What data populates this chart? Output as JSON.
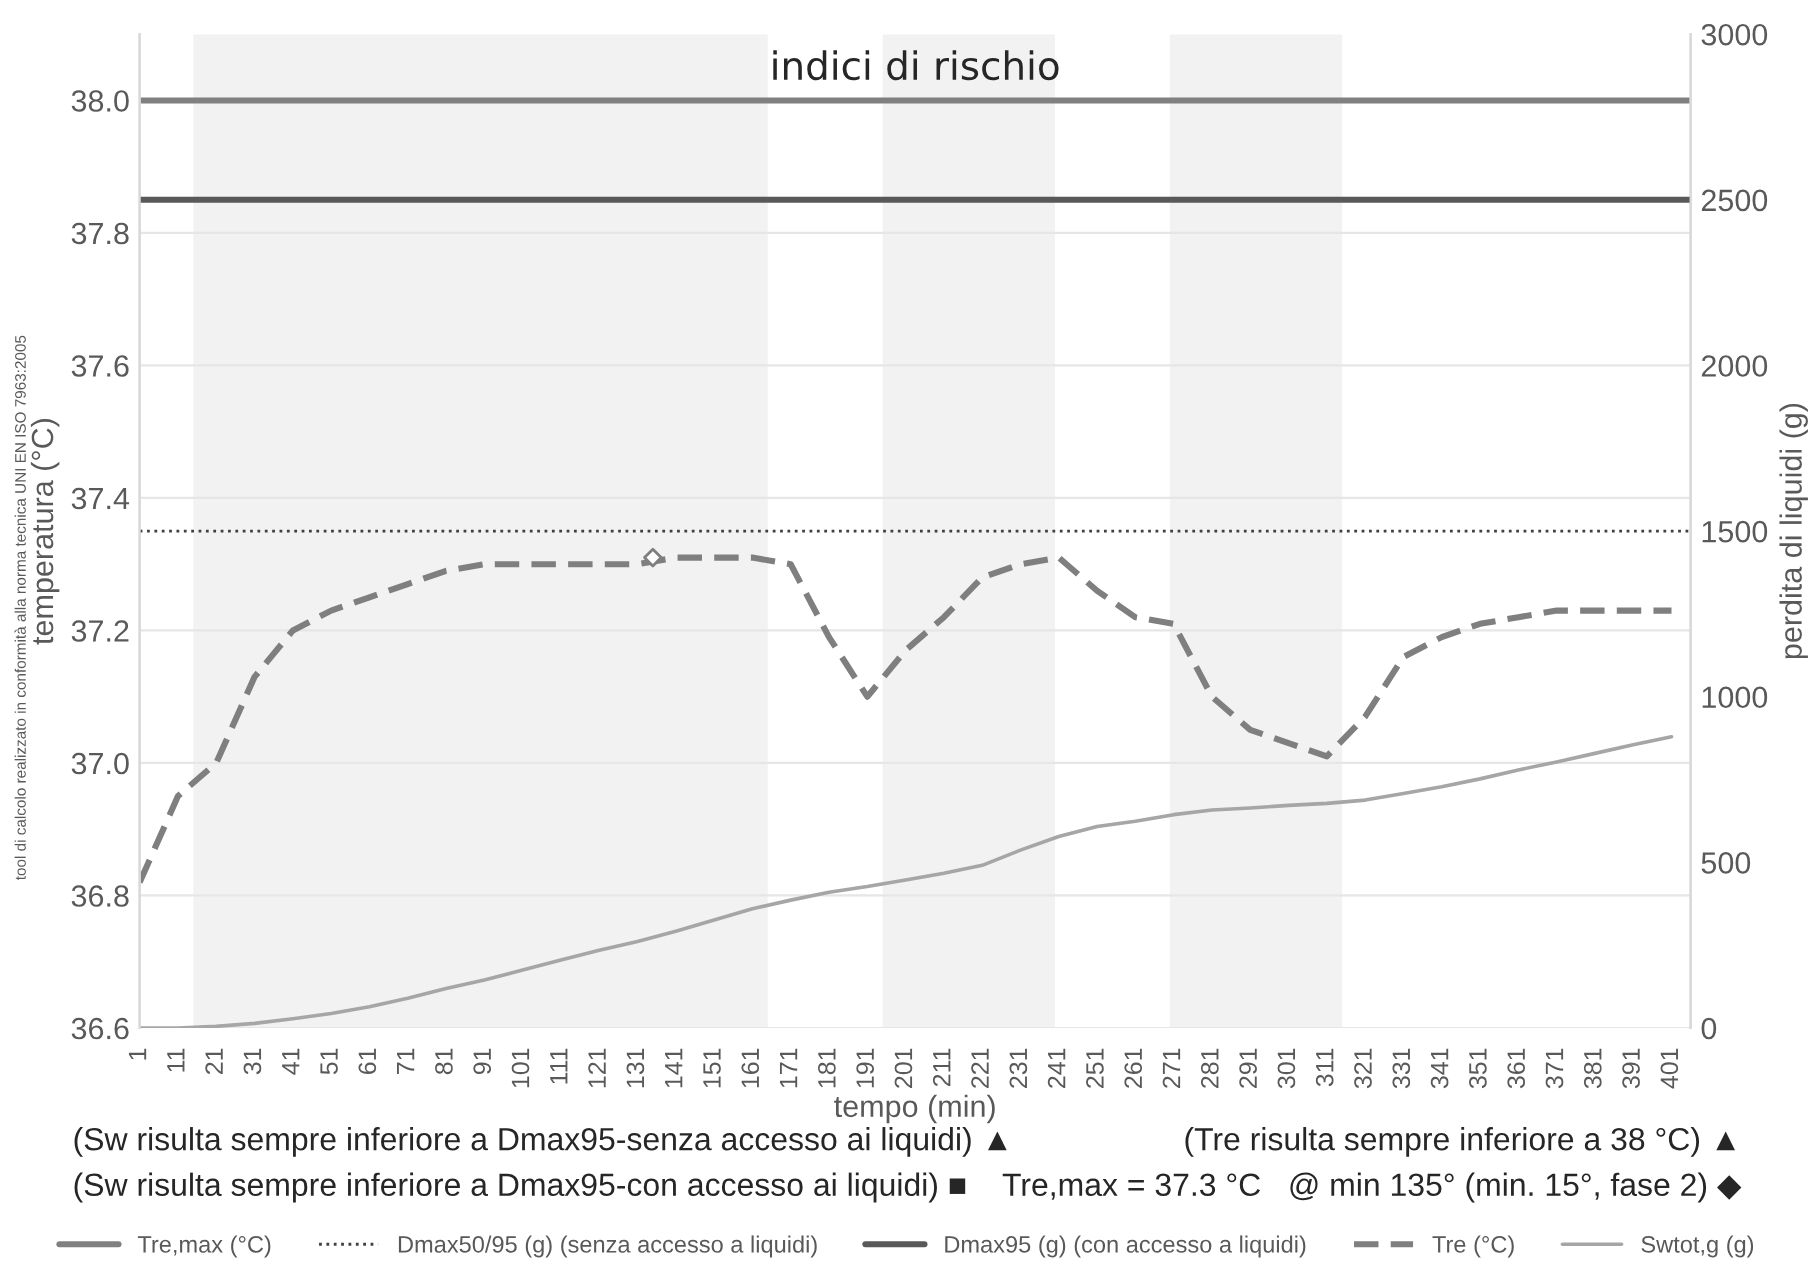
{
  "chart_data": {
    "type": "line",
    "title": "indici di rischio",
    "xlabel": "tempo (min)",
    "ylabel": "temperatura (°C)",
    "y2label": "perdita di liquidi (g)",
    "x": [
      1,
      11,
      21,
      31,
      41,
      51,
      61,
      71,
      81,
      91,
      101,
      111,
      121,
      131,
      141,
      151,
      161,
      171,
      181,
      191,
      201,
      211,
      221,
      231,
      241,
      251,
      261,
      271,
      281,
      291,
      301,
      311,
      321,
      331,
      341,
      351,
      361,
      371,
      381,
      391,
      401
    ],
    "xlim": [
      1,
      406
    ],
    "xticks": [
      1,
      11,
      21,
      31,
      41,
      51,
      61,
      71,
      81,
      91,
      101,
      111,
      121,
      131,
      141,
      151,
      161,
      171,
      181,
      191,
      201,
      211,
      221,
      231,
      241,
      251,
      261,
      271,
      281,
      291,
      301,
      311,
      321,
      331,
      341,
      351,
      361,
      371,
      381,
      391,
      401
    ],
    "ylim": [
      36.6,
      38.1
    ],
    "yticks": [
      {
        "value": 36.6,
        "label": "36.6"
      },
      {
        "value": 36.8,
        "label": "36.8"
      },
      {
        "value": 37.0,
        "label": "37.0"
      },
      {
        "value": 37.2,
        "label": "37.2"
      },
      {
        "value": 37.4,
        "label": "37.4"
      },
      {
        "value": 37.6,
        "label": "37.6"
      },
      {
        "value": 37.8,
        "label": "37.8"
      },
      {
        "value": 38.0,
        "label": "38.0"
      }
    ],
    "y2lim": [
      0,
      3000
    ],
    "y2ticks": [
      0,
      500,
      1000,
      1500,
      2000,
      2500,
      3000
    ],
    "grid": "y",
    "legend": "bottom",
    "ref_lines": [
      {
        "axis": "y",
        "value": 38.0,
        "label": "Tre,max (°C)",
        "color": "#808080",
        "line_style": "solid"
      },
      {
        "axis": "y2",
        "value": 1500,
        "label": "Dmax50/95 (g) (senza accesso a liquidi)",
        "color": "#404040",
        "line_style": "dotted"
      },
      {
        "axis": "y2",
        "value": 2500,
        "label": "Dmax95 (g) (con accesso a liquidi)",
        "color": "#595959",
        "line_style": "solid"
      }
    ],
    "bands": [
      {
        "axis": "x",
        "from": 15,
        "to": 165,
        "color": "#f2f2f2"
      },
      {
        "axis": "x",
        "from": 195,
        "to": 240,
        "color": "#f2f2f2"
      },
      {
        "axis": "x",
        "from": 270,
        "to": 315,
        "color": "#f2f2f2"
      }
    ],
    "series": [
      {
        "name": "Tre (°C)",
        "color": "#7f7f7f",
        "line_style": "dashed",
        "axis": "y",
        "values": [
          36.82,
          36.95,
          37.0,
          37.13,
          37.2,
          37.23,
          37.25,
          37.27,
          37.29,
          37.3,
          37.3,
          37.3,
          37.3,
          37.3,
          37.31,
          37.31,
          37.31,
          37.3,
          37.19,
          37.1,
          37.17,
          37.22,
          37.28,
          37.3,
          37.31,
          37.26,
          37.22,
          37.21,
          37.1,
          37.05,
          37.03,
          37.01,
          37.07,
          37.16,
          37.19,
          37.21,
          37.22,
          37.23,
          37.23,
          37.23,
          37.23
        ]
      },
      {
        "name": "Swtot,g (g)",
        "color": "#a6a6a6",
        "line_style": "solid",
        "axis": "y2",
        "values": [
          0,
          0,
          5,
          14,
          28,
          44,
          64,
          90,
          119,
          145,
          175,
          205,
          235,
          261,
          292,
          326,
          360,
          386,
          410,
          427,
          447,
          467,
          491,
          537,
          578,
          608,
          624,
          644,
          658,
          664,
          672,
          678,
          688,
          708,
          728,
          752,
          779,
          803,
          829,
          855,
          879
        ]
      },
      {
        "type": "scatter",
        "marker": "diamond",
        "color": "#7f7f7f",
        "axis": "y",
        "x": [
          135
        ],
        "values": [
          37.31
        ]
      }
    ],
    "annotations": [
      "(Sw risulta sempre inferiore a Dmax95-senza accesso ai liquidi) ▲",
      "(Tre risulta sempre inferiore a 38 °C) ▲",
      "(Sw risulta sempre inferiore a Dmax95-con accesso ai liquidi) ■",
      "Tre,max = 37.3 °C   @ min 135° (min. 15°, fase 2) ◆",
      "tool di calcolo realizzato in conformità alla norma tecnica UNI EN ISO 7963:2005"
    ]
  }
}
